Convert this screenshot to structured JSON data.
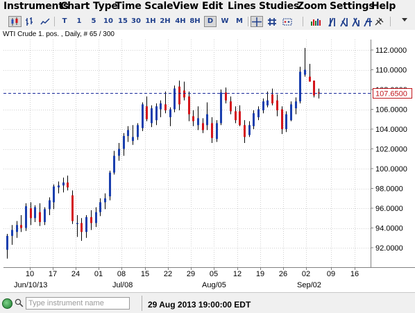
{
  "menu": [
    "Instruments",
    "Chart Type",
    "Time Scale",
    "View",
    "Edit",
    "Lines",
    "Studies",
    "Zoom",
    "Settings",
    "Help"
  ],
  "toolbar": {
    "chart_types": [
      "candlestick-icon",
      "bar-chart-icon",
      "line-chart-icon"
    ],
    "timescales": [
      "T",
      "1",
      "5",
      "10",
      "15",
      "30",
      "1H",
      "2H",
      "4H",
      "8H",
      "D",
      "W",
      "M"
    ],
    "selected_timescale": "D",
    "tools": [
      "crosshair-icon",
      "grid-icon",
      "annotation-icon",
      "studies-icon",
      "trend-lines-icon",
      "delete-lines-icon"
    ]
  },
  "chart": {
    "caption": "WTI Crude 1. pos. , Daily, # 65 / 300",
    "current_price_label": "107.6500",
    "current_price": 107.65,
    "colors": {
      "up": "#1a3fae",
      "down": "#d4141a",
      "wick": "#000000",
      "price_line": "#1a2a9a",
      "price_label": "#c0141a"
    }
  },
  "chart_data": {
    "type": "candlestick",
    "ylim": [
      90.2,
      113.3
    ],
    "y_ticks": [
      "92.0000",
      "94.0000",
      "96.0000",
      "98.0000",
      "100.0000",
      "102.0000",
      "104.0000",
      "106.0000",
      "108.0000",
      "110.0000",
      "112.0000"
    ],
    "x_day_labels": [
      "10",
      "17",
      "24",
      "01",
      "08",
      "15",
      "22",
      "29",
      "05",
      "12",
      "19",
      "26",
      "02",
      "09",
      "16"
    ],
    "x_month_labels": [
      "Jun/10/13",
      "Jul/08",
      "Aug/05",
      "Sep/02"
    ],
    "grid": true,
    "candles": [
      {
        "o": 91.8,
        "h": 93.4,
        "l": 90.9,
        "c": 93.2
      },
      {
        "o": 93.2,
        "h": 94.3,
        "l": 92.3,
        "c": 93.8
      },
      {
        "o": 93.6,
        "h": 94.7,
        "l": 93.0,
        "c": 94.3
      },
      {
        "o": 94.3,
        "h": 95.3,
        "l": 93.6,
        "c": 94.0
      },
      {
        "o": 94.0,
        "h": 96.5,
        "l": 93.7,
        "c": 96.2
      },
      {
        "o": 96.0,
        "h": 96.6,
        "l": 94.3,
        "c": 95.0
      },
      {
        "o": 95.0,
        "h": 96.3,
        "l": 94.6,
        "c": 96.1
      },
      {
        "o": 95.6,
        "h": 96.5,
        "l": 94.2,
        "c": 94.6
      },
      {
        "o": 94.6,
        "h": 96.1,
        "l": 94.3,
        "c": 95.9
      },
      {
        "o": 95.9,
        "h": 97.1,
        "l": 95.3,
        "c": 96.8
      },
      {
        "o": 96.6,
        "h": 98.4,
        "l": 95.9,
        "c": 98.2
      },
      {
        "o": 98.1,
        "h": 98.7,
        "l": 97.5,
        "c": 98.3
      },
      {
        "o": 98.3,
        "h": 99.1,
        "l": 97.6,
        "c": 98.6
      },
      {
        "o": 98.6,
        "h": 99.3,
        "l": 97.8,
        "c": 98.1
      },
      {
        "o": 97.3,
        "h": 97.8,
        "l": 94.4,
        "c": 94.7
      },
      {
        "o": 94.4,
        "h": 95.3,
        "l": 93.1,
        "c": 94.5
      },
      {
        "o": 94.5,
        "h": 95.0,
        "l": 92.7,
        "c": 93.6
      },
      {
        "o": 93.6,
        "h": 95.3,
        "l": 93.0,
        "c": 95.1
      },
      {
        "o": 95.1,
        "h": 95.8,
        "l": 93.8,
        "c": 94.5
      },
      {
        "o": 94.5,
        "h": 96.1,
        "l": 94.1,
        "c": 95.6
      },
      {
        "o": 95.6,
        "h": 97.0,
        "l": 95.2,
        "c": 96.6
      },
      {
        "o": 96.6,
        "h": 97.5,
        "l": 95.9,
        "c": 97.0
      },
      {
        "o": 97.2,
        "h": 99.8,
        "l": 96.8,
        "c": 99.6
      },
      {
        "o": 99.6,
        "h": 101.8,
        "l": 99.4,
        "c": 101.3
      },
      {
        "o": 101.3,
        "h": 102.6,
        "l": 100.8,
        "c": 102.0
      },
      {
        "o": 102.0,
        "h": 103.6,
        "l": 101.3,
        "c": 103.3
      },
      {
        "o": 103.3,
        "h": 104.3,
        "l": 102.7,
        "c": 103.9
      },
      {
        "o": 102.8,
        "h": 104.4,
        "l": 102.4,
        "c": 103.2
      },
      {
        "o": 103.2,
        "h": 104.6,
        "l": 102.9,
        "c": 104.4
      },
      {
        "o": 104.1,
        "h": 106.7,
        "l": 103.8,
        "c": 106.5
      },
      {
        "o": 106.3,
        "h": 107.3,
        "l": 104.8,
        "c": 105.0
      },
      {
        "o": 104.6,
        "h": 106.4,
        "l": 104.2,
        "c": 106.1
      },
      {
        "o": 104.9,
        "h": 106.6,
        "l": 104.4,
        "c": 106.3
      },
      {
        "o": 106.0,
        "h": 106.9,
        "l": 105.2,
        "c": 106.6
      },
      {
        "o": 106.5,
        "h": 107.8,
        "l": 105.6,
        "c": 105.9
      },
      {
        "o": 105.2,
        "h": 106.2,
        "l": 104.3,
        "c": 106.0
      },
      {
        "o": 106.0,
        "h": 108.4,
        "l": 105.7,
        "c": 108.1
      },
      {
        "o": 108.3,
        "h": 108.9,
        "l": 105.9,
        "c": 106.5
      },
      {
        "o": 107.9,
        "h": 108.8,
        "l": 106.9,
        "c": 107.2
      },
      {
        "o": 107.3,
        "h": 107.8,
        "l": 104.8,
        "c": 105.5
      },
      {
        "o": 105.3,
        "h": 105.9,
        "l": 104.3,
        "c": 104.8
      },
      {
        "o": 104.4,
        "h": 106.3,
        "l": 103.9,
        "c": 105.1
      },
      {
        "o": 104.6,
        "h": 105.1,
        "l": 103.6,
        "c": 103.9
      },
      {
        "o": 104.4,
        "h": 106.7,
        "l": 103.9,
        "c": 105.5
      },
      {
        "o": 104.6,
        "h": 105.2,
        "l": 102.6,
        "c": 103.1
      },
      {
        "o": 103.0,
        "h": 104.9,
        "l": 102.7,
        "c": 104.6
      },
      {
        "o": 104.6,
        "h": 108.0,
        "l": 104.4,
        "c": 107.7
      },
      {
        "o": 107.7,
        "h": 108.2,
        "l": 106.6,
        "c": 106.9
      },
      {
        "o": 106.8,
        "h": 107.3,
        "l": 105.5,
        "c": 105.8
      },
      {
        "o": 105.8,
        "h": 106.3,
        "l": 104.6,
        "c": 104.9
      },
      {
        "o": 105.8,
        "h": 106.4,
        "l": 104.3,
        "c": 104.4
      },
      {
        "o": 104.4,
        "h": 104.9,
        "l": 102.6,
        "c": 103.2
      },
      {
        "o": 103.4,
        "h": 104.8,
        "l": 103.2,
        "c": 104.4
      },
      {
        "o": 104.3,
        "h": 105.9,
        "l": 104.0,
        "c": 105.6
      },
      {
        "o": 105.2,
        "h": 106.3,
        "l": 104.9,
        "c": 106.0
      },
      {
        "o": 105.9,
        "h": 107.1,
        "l": 105.6,
        "c": 106.8
      },
      {
        "o": 106.4,
        "h": 107.8,
        "l": 106.2,
        "c": 106.9
      },
      {
        "o": 107.5,
        "h": 108.1,
        "l": 106.4,
        "c": 106.6
      },
      {
        "o": 106.9,
        "h": 107.5,
        "l": 105.3,
        "c": 105.9
      },
      {
        "o": 106.0,
        "h": 106.3,
        "l": 103.5,
        "c": 104.0
      },
      {
        "o": 104.0,
        "h": 105.8,
        "l": 103.7,
        "c": 105.5
      },
      {
        "o": 104.9,
        "h": 106.8,
        "l": 104.8,
        "c": 106.5
      },
      {
        "o": 106.1,
        "h": 107.2,
        "l": 105.5,
        "c": 106.8
      },
      {
        "o": 106.8,
        "h": 110.3,
        "l": 106.6,
        "c": 109.8
      },
      {
        "o": 109.5,
        "h": 112.2,
        "l": 109.3,
        "c": 110.0
      },
      {
        "o": 109.3,
        "h": 110.6,
        "l": 108.8,
        "c": 108.8
      },
      {
        "o": 108.9,
        "h": 108.9,
        "l": 107.2,
        "c": 107.4
      },
      {
        "o": 107.7,
        "h": 108.1,
        "l": 107.1,
        "c": 107.6
      }
    ]
  },
  "status": {
    "search_placeholder": "Type instrument name",
    "datetime": "29 Aug 2013 19:00:00 EDT"
  }
}
